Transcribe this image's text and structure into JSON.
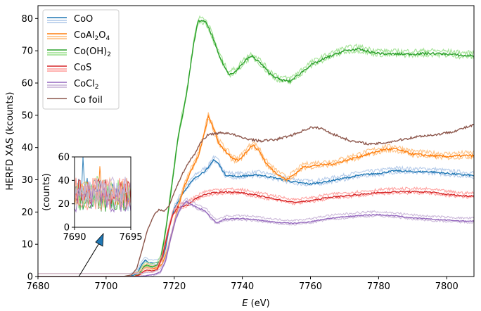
{
  "chart_data": {
    "type": "line",
    "xlabel": "E (eV)",
    "ylabel": "HERFD XAS (kcounts)",
    "xlim": [
      7680,
      7808
    ],
    "ylim": [
      0,
      84
    ],
    "x_ticks": [
      7680,
      7700,
      7720,
      7740,
      7760,
      7780,
      7800
    ],
    "y_ticks": [
      0,
      10,
      20,
      30,
      40,
      50,
      60,
      70,
      80
    ],
    "grid": false,
    "legend_position": "top-left",
    "legend": [
      {
        "label": "CoO",
        "sub": "",
        "color": "#1f77b4",
        "pale": "#aec7e8",
        "paired": true
      },
      {
        "label": "CoAl",
        "sub": "2",
        "tail": "O",
        "sub2": "4",
        "color": "#ff7f0e",
        "pale": "#ffbb78",
        "paired": true
      },
      {
        "label": "Co(OH)",
        "sub": "2",
        "color": "#2ca02c",
        "pale": "#98df8a",
        "paired": true
      },
      {
        "label": "CoS",
        "sub": "",
        "color": "#d62728",
        "pale": "#ff9896",
        "paired": true
      },
      {
        "label": "CoCl",
        "sub": "2",
        "color": "#9467bd",
        "pale": "#c5b0d5",
        "paired": true
      },
      {
        "label": "Co foil",
        "sub": "",
        "color": "#8c564b",
        "pale": "#8c564b",
        "paired": false
      }
    ],
    "series": [
      {
        "name": "CoO",
        "color": "#1f77b4",
        "points": [
          [
            7680,
            0
          ],
          [
            7707,
            0
          ],
          [
            7709,
            0.8
          ],
          [
            7710.5,
            3.8
          ],
          [
            7711.5,
            5.2
          ],
          [
            7712.5,
            4.3
          ],
          [
            7714,
            4.2
          ],
          [
            7715.5,
            4.4
          ],
          [
            7716.5,
            5.4
          ],
          [
            7717.5,
            9
          ],
          [
            7718.5,
            15
          ],
          [
            7720,
            21
          ],
          [
            7722,
            25
          ],
          [
            7724,
            28
          ],
          [
            7726,
            30.5
          ],
          [
            7728,
            32
          ],
          [
            7730,
            33.5
          ],
          [
            7731.5,
            36.3
          ],
          [
            7733,
            35
          ],
          [
            7735,
            31.5
          ],
          [
            7738,
            31
          ],
          [
            7740,
            31.2
          ],
          [
            7745,
            31.5
          ],
          [
            7750,
            30.5
          ],
          [
            7755,
            29.3
          ],
          [
            7760,
            28.7
          ],
          [
            7765,
            29.5
          ],
          [
            7770,
            30.5
          ],
          [
            7775,
            31.5
          ],
          [
            7780,
            32
          ],
          [
            7785,
            32.8
          ],
          [
            7790,
            32.5
          ],
          [
            7795,
            32.5
          ],
          [
            7800,
            32
          ],
          [
            7805,
            31.5
          ],
          [
            7808,
            31.3
          ]
        ]
      },
      {
        "name": "CoAl2O4",
        "color": "#ff7f0e",
        "points": [
          [
            7680,
            0
          ],
          [
            7708,
            0
          ],
          [
            7709.5,
            0.6
          ],
          [
            7711,
            2.6
          ],
          [
            7712,
            3.1
          ],
          [
            7713.5,
            2.5
          ],
          [
            7715,
            2.6
          ],
          [
            7716.5,
            4
          ],
          [
            7718,
            8
          ],
          [
            7719.5,
            14
          ],
          [
            7721,
            21
          ],
          [
            7723,
            28
          ],
          [
            7725,
            33
          ],
          [
            7727,
            37
          ],
          [
            7728.5,
            43
          ],
          [
            7730,
            49.5
          ],
          [
            7731,
            47.5
          ],
          [
            7733,
            41.5
          ],
          [
            7735,
            39
          ],
          [
            7737,
            36.5
          ],
          [
            7739,
            36
          ],
          [
            7741,
            38.5
          ],
          [
            7743,
            40.8
          ],
          [
            7745,
            39
          ],
          [
            7747,
            35
          ],
          [
            7750,
            32
          ],
          [
            7753,
            30
          ],
          [
            7755,
            31.5
          ],
          [
            7758,
            34
          ],
          [
            7762,
            34.5
          ],
          [
            7767,
            35
          ],
          [
            7772,
            36.5
          ],
          [
            7777,
            38
          ],
          [
            7782,
            39.5
          ],
          [
            7785,
            39.5
          ],
          [
            7790,
            38
          ],
          [
            7795,
            37.5
          ],
          [
            7800,
            37.2
          ],
          [
            7805,
            37.5
          ],
          [
            7808,
            37.5
          ]
        ]
      },
      {
        "name": "Co(OH)2",
        "color": "#2ca02c",
        "points": [
          [
            7680,
            0
          ],
          [
            7708,
            0
          ],
          [
            7709.5,
            0.5
          ],
          [
            7711,
            3
          ],
          [
            7712,
            3.6
          ],
          [
            7713.5,
            3
          ],
          [
            7715,
            3.6
          ],
          [
            7716,
            5.5
          ],
          [
            7717,
            11
          ],
          [
            7718,
            18
          ],
          [
            7719,
            26
          ],
          [
            7720,
            34
          ],
          [
            7721,
            42
          ],
          [
            7722,
            48
          ],
          [
            7723,
            53
          ],
          [
            7724,
            59
          ],
          [
            7725,
            67
          ],
          [
            7726,
            74
          ],
          [
            7727,
            79
          ],
          [
            7728,
            79.5
          ],
          [
            7729.5,
            78.5
          ],
          [
            7731,
            75
          ],
          [
            7733,
            69
          ],
          [
            7735,
            64.5
          ],
          [
            7736,
            62.8
          ],
          [
            7738,
            63.5
          ],
          [
            7740,
            66
          ],
          [
            7742,
            68
          ],
          [
            7743,
            68.2
          ],
          [
            7745,
            66.5
          ],
          [
            7748,
            63
          ],
          [
            7751,
            61
          ],
          [
            7754,
            60.5
          ],
          [
            7757,
            63
          ],
          [
            7760,
            65.5
          ],
          [
            7765,
            68
          ],
          [
            7770,
            70
          ],
          [
            7774,
            70.5
          ],
          [
            7778,
            69.5
          ],
          [
            7782,
            69
          ],
          [
            7786,
            69
          ],
          [
            7790,
            69
          ],
          [
            7795,
            69.2
          ],
          [
            7800,
            69
          ],
          [
            7805,
            68.5
          ],
          [
            7808,
            68.5
          ]
        ]
      },
      {
        "name": "CoS",
        "color": "#d62728",
        "points": [
          [
            7680,
            0
          ],
          [
            7708,
            0
          ],
          [
            7709.5,
            0.4
          ],
          [
            7711,
            1.6
          ],
          [
            7712,
            2
          ],
          [
            7713.5,
            1.7
          ],
          [
            7715,
            2.2
          ],
          [
            7716.5,
            6
          ],
          [
            7718,
            13
          ],
          [
            7719.5,
            19
          ],
          [
            7721,
            21.5
          ],
          [
            7722.5,
            21.8
          ],
          [
            7724,
            22.2
          ],
          [
            7726,
            24
          ],
          [
            7729,
            25.5
          ],
          [
            7732,
            26
          ],
          [
            7735,
            26.3
          ],
          [
            7740,
            26
          ],
          [
            7745,
            25
          ],
          [
            7750,
            24
          ],
          [
            7755,
            23
          ],
          [
            7760,
            23.5
          ],
          [
            7765,
            24.5
          ],
          [
            7770,
            25
          ],
          [
            7775,
            25.5
          ],
          [
            7780,
            26
          ],
          [
            7785,
            26.3
          ],
          [
            7790,
            26.3
          ],
          [
            7795,
            26.2
          ],
          [
            7800,
            25.5
          ],
          [
            7805,
            25
          ],
          [
            7808,
            25
          ]
        ]
      },
      {
        "name": "CoCl2",
        "color": "#9467bd",
        "points": [
          [
            7680,
            0
          ],
          [
            7708,
            0
          ],
          [
            7710,
            0.1
          ],
          [
            7712,
            0.3
          ],
          [
            7714,
            0.6
          ],
          [
            7716,
            1.5
          ],
          [
            7717.5,
            5
          ],
          [
            7719,
            12
          ],
          [
            7720.5,
            18
          ],
          [
            7722,
            21.5
          ],
          [
            7723.5,
            23.3
          ],
          [
            7725,
            22.5
          ],
          [
            7727,
            21.2
          ],
          [
            7729,
            20.5
          ],
          [
            7731,
            18
          ],
          [
            7732.5,
            16.7
          ],
          [
            7735,
            17.8
          ],
          [
            7740,
            18
          ],
          [
            7745,
            17.5
          ],
          [
            7750,
            16.8
          ],
          [
            7755,
            16.5
          ],
          [
            7760,
            17
          ],
          [
            7765,
            18
          ],
          [
            7770,
            18.5
          ],
          [
            7775,
            19
          ],
          [
            7780,
            19.2
          ],
          [
            7785,
            18.8
          ],
          [
            7790,
            18.2
          ],
          [
            7795,
            17.8
          ],
          [
            7800,
            17.5
          ],
          [
            7805,
            17.2
          ],
          [
            7808,
            17.2
          ]
        ]
      },
      {
        "name": "Co foil",
        "color": "#8c564b",
        "points": [
          [
            7680,
            0
          ],
          [
            7705,
            0
          ],
          [
            7707.5,
            0.5
          ],
          [
            7709,
            2.5
          ],
          [
            7710.5,
            8
          ],
          [
            7712,
            14
          ],
          [
            7714,
            19
          ],
          [
            7715.5,
            20.8
          ],
          [
            7717,
            20.2
          ],
          [
            7718.5,
            22
          ],
          [
            7720,
            26
          ],
          [
            7722,
            31
          ],
          [
            7724,
            35
          ],
          [
            7726,
            38
          ],
          [
            7728,
            42
          ],
          [
            7730,
            44
          ],
          [
            7733,
            44.5
          ],
          [
            7736,
            44.5
          ],
          [
            7740,
            43
          ],
          [
            7745,
            42
          ],
          [
            7750,
            42.5
          ],
          [
            7755,
            44
          ],
          [
            7760,
            46.2
          ],
          [
            7763,
            46
          ],
          [
            7767,
            44
          ],
          [
            7772,
            42
          ],
          [
            7778,
            41
          ],
          [
            7782,
            41.5
          ],
          [
            7787,
            42.5
          ],
          [
            7792,
            43.5
          ],
          [
            7797,
            44
          ],
          [
            7802,
            45
          ],
          [
            7808,
            47
          ]
        ]
      }
    ],
    "inset": {
      "ylabel": "(counts)",
      "xlim": [
        7690,
        7695
      ],
      "ylim": [
        0,
        60
      ],
      "x_ticks": [
        7690,
        7695
      ],
      "y_ticks": [
        0,
        20,
        40,
        60
      ],
      "arrow_target_x": 7692,
      "arrow_color": "#1f77b4"
    }
  }
}
